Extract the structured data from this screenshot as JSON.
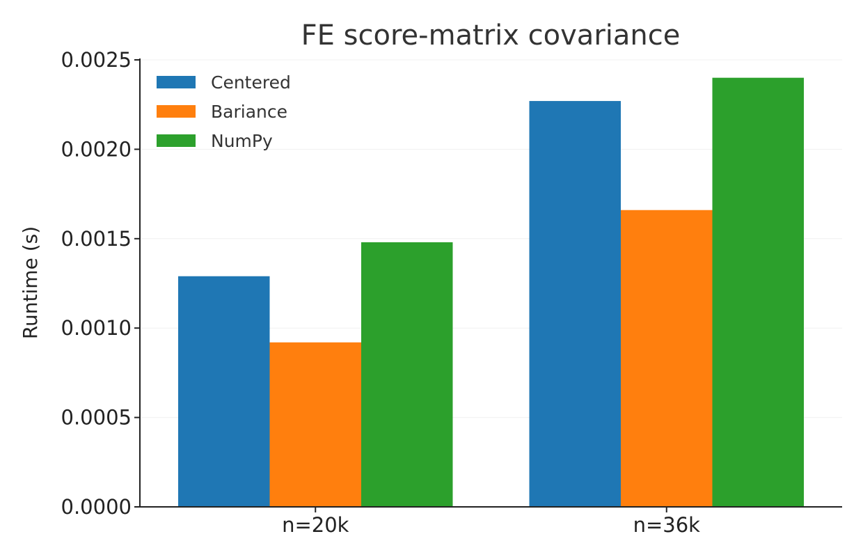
{
  "chart_data": {
    "type": "bar",
    "title": "FE score-matrix covariance",
    "xlabel": "",
    "ylabel": "Runtime (s)",
    "categories": [
      "n=20k",
      "n=36k"
    ],
    "series": [
      {
        "name": "Centered",
        "color": "#1f77b4",
        "values": [
          0.00129,
          0.00227
        ]
      },
      {
        "name": "Bariance",
        "color": "#ff7f0e",
        "values": [
          0.00092,
          0.00166
        ]
      },
      {
        "name": "NumPy",
        "color": "#2ca02c",
        "values": [
          0.00148,
          0.0024
        ]
      }
    ],
    "ylim": [
      0,
      0.0025
    ],
    "yticks": [
      "0.0000",
      "0.0005",
      "0.0010",
      "0.0015",
      "0.0020",
      "0.0025"
    ],
    "ytick_values": [
      0,
      0.0005,
      0.001,
      0.0015,
      0.002,
      0.0025
    ],
    "grid": true,
    "legend_position": "top-left"
  }
}
